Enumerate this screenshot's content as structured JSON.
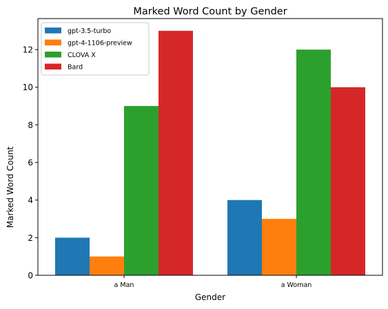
{
  "chart_data": {
    "type": "bar",
    "title": "Marked Word Count by Gender",
    "xlabel": "Gender",
    "ylabel": "Marked Word Count",
    "categories": [
      "a Man",
      "a Woman"
    ],
    "series": [
      {
        "name": "gpt-3.5-turbo",
        "values": [
          2,
          4
        ],
        "color": "#1f77b4"
      },
      {
        "name": "gpt-4-1106-preview",
        "values": [
          1,
          3
        ],
        "color": "#ff7f0e"
      },
      {
        "name": "CLOVA X",
        "values": [
          9,
          12
        ],
        "color": "#2ca02c"
      },
      {
        "name": "Bard",
        "values": [
          13,
          10
        ],
        "color": "#d62728"
      }
    ],
    "ylim": [
      0,
      13.65
    ],
    "yticks": [
      0,
      2,
      4,
      6,
      8,
      10,
      12
    ],
    "grid": false,
    "legend_position": "top-left"
  }
}
